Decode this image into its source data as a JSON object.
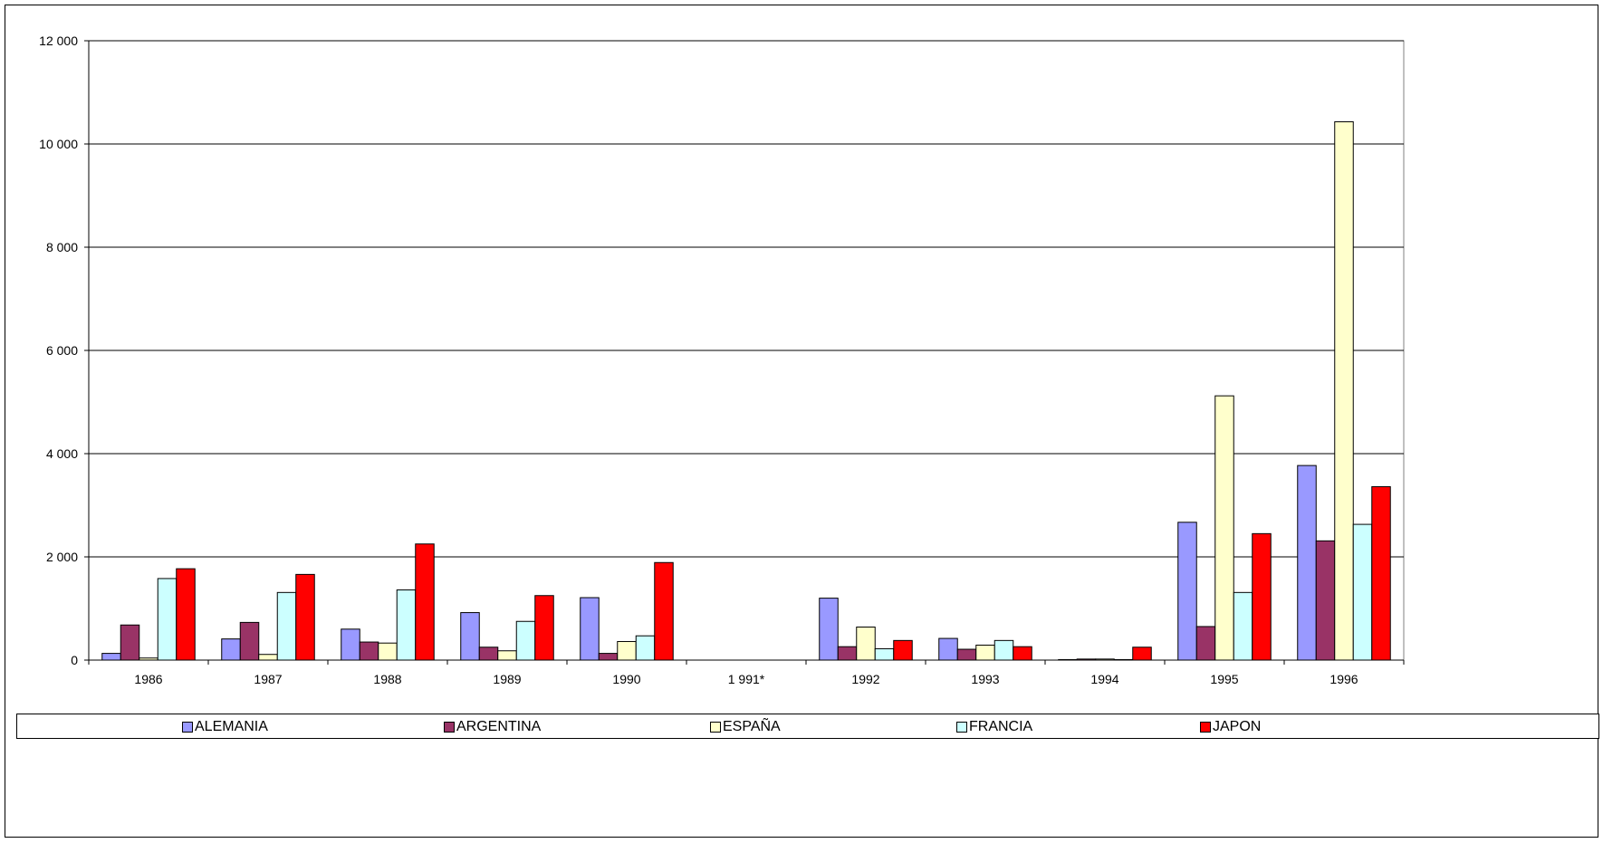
{
  "chart_data": {
    "type": "bar",
    "categories": [
      "1986",
      "1987",
      "1988",
      "1989",
      "1990",
      "1 991*",
      "1992",
      "1993",
      "1994",
      "1995",
      "1996"
    ],
    "series": [
      {
        "name": "ALEMANIA",
        "color": "#9999FF",
        "values": [
          130,
          410,
          600,
          920,
          1210,
          0,
          1200,
          420,
          10,
          2670,
          3770
        ]
      },
      {
        "name": "ARGENTINA",
        "color": "#993366",
        "values": [
          680,
          730,
          350,
          250,
          130,
          0,
          260,
          210,
          20,
          650,
          2310
        ]
      },
      {
        "name": "ESPAÑA",
        "color": "#FFFFCC",
        "values": [
          40,
          110,
          330,
          180,
          360,
          0,
          640,
          290,
          20,
          5120,
          10430
        ]
      },
      {
        "name": "FRANCIA",
        "color": "#CCFFFF",
        "values": [
          1580,
          1310,
          1360,
          750,
          470,
          0,
          220,
          380,
          10,
          1310,
          2630
        ]
      },
      {
        "name": "JAPON",
        "color": "#FF0000",
        "values": [
          1770,
          1660,
          2250,
          1250,
          1890,
          0,
          380,
          260,
          250,
          2450,
          3360
        ]
      }
    ],
    "y_ticks": [
      "0",
      "2 000",
      "4 000",
      "6 000",
      "8 000",
      "10 000",
      "12 000"
    ],
    "ylim": [
      0,
      12000
    ],
    "grid": true,
    "legend_position": "bottom"
  }
}
